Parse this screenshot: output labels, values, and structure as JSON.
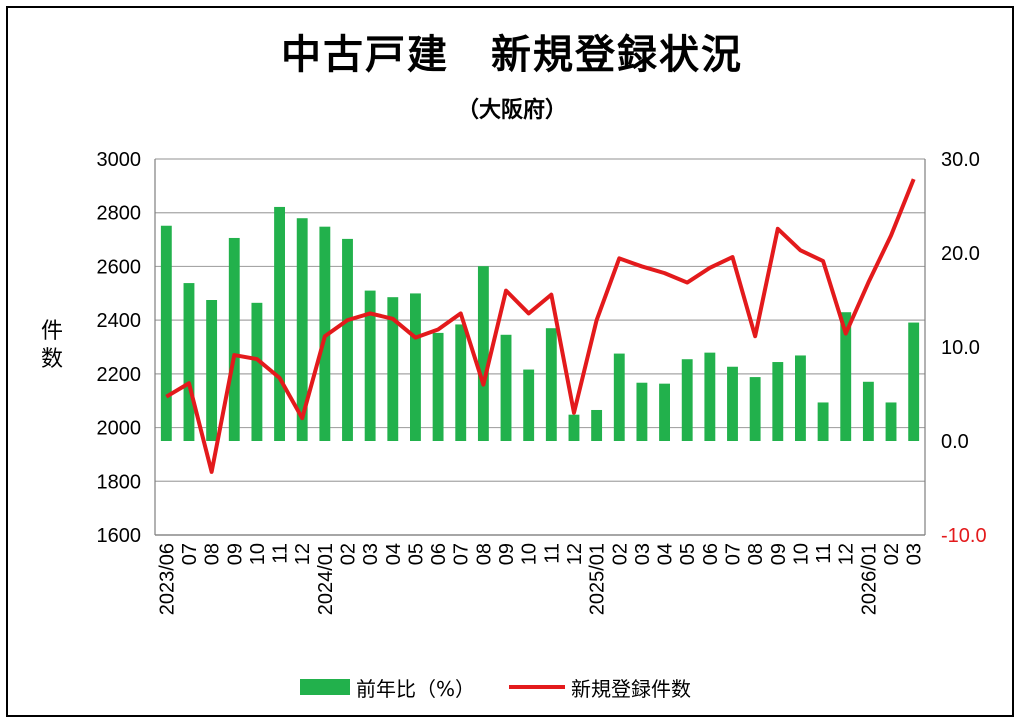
{
  "title": "中古戸建　新規登録状況",
  "subtitle": "（大阪府）",
  "ylabel": "件数",
  "colors": {
    "bar": "#22b14c",
    "line": "#e31a1c",
    "right_axis": "#e31a1c",
    "grid": "#a6a6a6"
  },
  "chart_data": {
    "type": "bar+line",
    "categories": [
      "2023/06",
      "07",
      "08",
      "09",
      "10",
      "11",
      "12",
      "2024/01",
      "02",
      "03",
      "04",
      "05",
      "06",
      "07",
      "08",
      "09",
      "10",
      "11",
      "12",
      "2025/01",
      "02",
      "03",
      "04",
      "05",
      "06",
      "07",
      "08",
      "09",
      "10",
      "11",
      "12",
      "2026/01",
      "02",
      "03"
    ],
    "series": [
      {
        "name": "前年比（%）",
        "type": "bar",
        "axis": "right",
        "values": [
          22.9,
          16.8,
          15.0,
          21.6,
          14.7,
          24.9,
          23.7,
          22.8,
          21.5,
          16.0,
          15.3,
          15.7,
          11.5,
          12.4,
          18.6,
          11.3,
          7.6,
          12.0,
          2.8,
          3.3,
          9.3,
          6.2,
          6.1,
          8.7,
          9.4,
          7.9,
          6.8,
          8.4,
          9.1,
          4.1,
          13.7,
          6.3,
          4.1,
          12.6
        ]
      },
      {
        "name": "新規登録件数",
        "type": "line",
        "axis": "left",
        "values": [
          2115,
          2165,
          1835,
          2270,
          2255,
          2185,
          2035,
          2340,
          2400,
          2425,
          2405,
          2335,
          2365,
          2425,
          2160,
          2510,
          2425,
          2495,
          2055,
          2400,
          2630,
          2600,
          2575,
          2540,
          2595,
          2635,
          2340,
          2740,
          2660,
          2620,
          2350,
          2540,
          2715,
          2925
        ]
      }
    ],
    "y_left": {
      "ylim": [
        1600,
        3000
      ],
      "ticks": [
        "1600",
        "1800",
        "2000",
        "2200",
        "2400",
        "2600",
        "2800",
        "3000"
      ]
    },
    "y_right": {
      "ylim": [
        -10,
        30
      ],
      "ticks": [
        "-10.0",
        "0.0",
        "10.0",
        "20.0",
        "30.0"
      ]
    },
    "grid": true,
    "legend": "bottom"
  },
  "legend": {
    "bar_label": "前年比（%）",
    "line_label": "新規登録件数"
  }
}
